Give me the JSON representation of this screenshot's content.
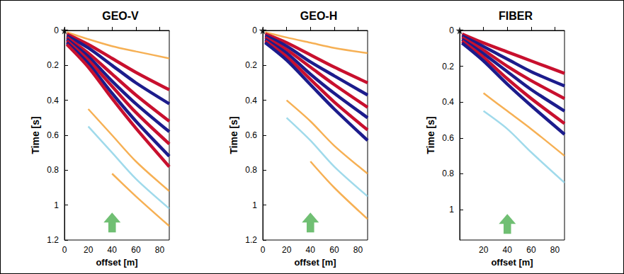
{
  "chart_data": [
    {
      "type": "line",
      "title": "GEO-V",
      "x_label": "offset [m]",
      "y_label": "Time [s]",
      "xlim": [
        0,
        88
      ],
      "ylim": [
        0,
        1.2
      ],
      "xticks": [
        0,
        20,
        40,
        60,
        80
      ],
      "yticks": [
        0,
        0.2,
        0.4,
        0.6,
        0.8,
        1,
        1.2
      ],
      "grid": false,
      "x": [
        2,
        20,
        40,
        60,
        88
      ],
      "series": [
        {
          "color": "#f4a236",
          "values": [
            0.01,
            0.05,
            0.09,
            0.12,
            0.16
          ]
        },
        {
          "color": "#c8102e",
          "values": [
            0.02,
            0.08,
            0.16,
            0.24,
            0.34
          ]
        },
        {
          "color": "#1c1c8c",
          "values": [
            0.03,
            0.1,
            0.2,
            0.3,
            0.42
          ]
        },
        {
          "color": "#c8102e",
          "values": [
            0.04,
            0.13,
            0.25,
            0.37,
            0.52
          ]
        },
        {
          "color": "#1c1c8c",
          "values": [
            0.05,
            0.15,
            0.29,
            0.42,
            0.58
          ]
        },
        {
          "color": "#c8102e",
          "values": [
            0.06,
            0.17,
            0.32,
            0.47,
            0.65
          ]
        },
        {
          "color": "#1c1c8c",
          "values": [
            0.07,
            0.19,
            0.36,
            0.52,
            0.72
          ]
        },
        {
          "color": "#c8102e",
          "values": [
            0.08,
            0.21,
            0.39,
            0.56,
            0.78
          ]
        },
        {
          "color": "#f4a236",
          "values": [
            null,
            0.45,
            0.6,
            0.75,
            0.92
          ]
        },
        {
          "color": "#8fd3e8",
          "values": [
            null,
            0.55,
            0.7,
            0.85,
            1.02
          ]
        },
        {
          "color": "#f4a236",
          "values": [
            null,
            null,
            0.82,
            0.95,
            1.12
          ]
        }
      ],
      "annotations": [
        {
          "marker": "star",
          "color": "#000000",
          "x": 0,
          "y": 0
        },
        {
          "marker": "arrow",
          "color": "#4caf50",
          "x": 40,
          "y": 1.1
        }
      ]
    },
    {
      "type": "line",
      "title": "GEO-H",
      "x_label": "offset [m]",
      "y_label": "Time [s]",
      "xlim": [
        0,
        88
      ],
      "ylim": [
        0,
        1.2
      ],
      "xticks": [
        0,
        20,
        40,
        60,
        80
      ],
      "yticks": [
        0,
        0.2,
        0.4,
        0.6,
        0.8,
        1,
        1.2
      ],
      "grid": false,
      "x": [
        2,
        20,
        40,
        60,
        88
      ],
      "series": [
        {
          "color": "#f4a236",
          "values": [
            0.01,
            0.04,
            0.07,
            0.1,
            0.13
          ]
        },
        {
          "color": "#c8102e",
          "values": [
            0.02,
            0.07,
            0.14,
            0.21,
            0.3
          ]
        },
        {
          "color": "#1c1c8c",
          "values": [
            0.03,
            0.09,
            0.18,
            0.26,
            0.37
          ]
        },
        {
          "color": "#c8102e",
          "values": [
            0.04,
            0.11,
            0.21,
            0.31,
            0.44
          ]
        },
        {
          "color": "#1c1c8c",
          "values": [
            0.05,
            0.13,
            0.25,
            0.36,
            0.5
          ]
        },
        {
          "color": "#c8102e",
          "values": [
            0.06,
            0.15,
            0.28,
            0.41,
            0.57
          ]
        },
        {
          "color": "#1c1c8c",
          "values": [
            0.07,
            0.17,
            0.31,
            0.45,
            0.63
          ]
        },
        {
          "color": "#f4a236",
          "values": [
            null,
            0.4,
            0.52,
            0.66,
            0.82
          ]
        },
        {
          "color": "#8fd3e8",
          "values": [
            null,
            0.5,
            0.63,
            0.78,
            0.95
          ]
        },
        {
          "color": "#f4a236",
          "values": [
            null,
            null,
            0.75,
            0.9,
            1.08
          ]
        }
      ],
      "annotations": [
        {
          "marker": "star",
          "color": "#000000",
          "x": 0,
          "y": 0
        },
        {
          "marker": "arrow",
          "color": "#4caf50",
          "x": 40,
          "y": 1.1
        }
      ]
    },
    {
      "type": "line",
      "title": "FIBER",
      "x_label": "offset [m]",
      "y_label": "Time [s]",
      "xlim": [
        0,
        88
      ],
      "ylim": [
        0,
        1.17
      ],
      "xticks": [
        20,
        40,
        60,
        80
      ],
      "yticks": [
        0,
        0.2,
        0.4,
        0.6,
        0.8,
        1
      ],
      "grid": false,
      "x": [
        2,
        20,
        40,
        60,
        88
      ],
      "series": [
        {
          "color": "#c8102e",
          "values": [
            0.02,
            0.07,
            0.12,
            0.17,
            0.24
          ]
        },
        {
          "color": "#1c1c8c",
          "values": [
            0.03,
            0.09,
            0.16,
            0.23,
            0.31
          ]
        },
        {
          "color": "#c8102e",
          "values": [
            0.04,
            0.11,
            0.2,
            0.28,
            0.38
          ]
        },
        {
          "color": "#1c1c8c",
          "values": [
            0.05,
            0.13,
            0.23,
            0.33,
            0.45
          ]
        },
        {
          "color": "#c8102e",
          "values": [
            0.06,
            0.15,
            0.27,
            0.38,
            0.52
          ]
        },
        {
          "color": "#1c1c8c",
          "values": [
            0.07,
            0.17,
            0.3,
            0.42,
            0.58
          ]
        },
        {
          "color": "#f4a236",
          "values": [
            null,
            0.35,
            0.45,
            0.55,
            0.7
          ]
        },
        {
          "color": "#8fd3e8",
          "values": [
            null,
            0.45,
            0.55,
            0.68,
            0.85
          ]
        }
      ],
      "annotations": [
        {
          "marker": "star",
          "color": "#000000",
          "x": 0,
          "y": 0
        },
        {
          "marker": "arrow",
          "color": "#4caf50",
          "x": 40,
          "y": 1.08
        }
      ]
    }
  ]
}
